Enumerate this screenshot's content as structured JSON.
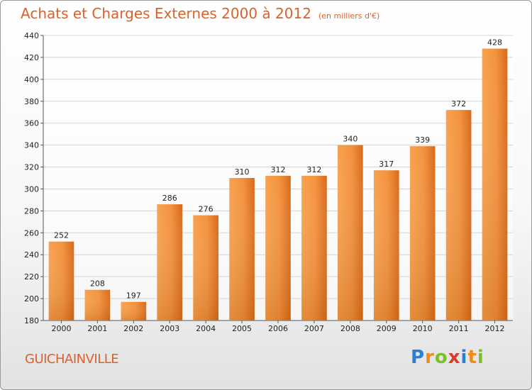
{
  "chart_data": {
    "type": "bar",
    "title": "Achats et Charges Externes 2000 à 2012",
    "subtitle": "(en milliers d'€)",
    "categories": [
      "2000",
      "2001",
      "2002",
      "2003",
      "2004",
      "2005",
      "2006",
      "2007",
      "2008",
      "2009",
      "2010",
      "2011",
      "2012"
    ],
    "values": [
      252,
      208,
      197,
      286,
      276,
      310,
      312,
      312,
      340,
      317,
      339,
      372,
      428
    ],
    "ylim": [
      180,
      440
    ],
    "yticks": [
      180,
      200,
      220,
      240,
      260,
      280,
      300,
      320,
      340,
      360,
      380,
      400,
      420,
      440
    ],
    "grid": true,
    "bar_color": "#f3923d",
    "xlabel": "",
    "ylabel": ""
  },
  "footer": {
    "city": "GUICHAINVILLE",
    "logo_letters": [
      "P",
      "r",
      "o",
      "x",
      "i",
      "t",
      "i"
    ],
    "logo_colors": [
      "#2f7fd1",
      "#f08a1d",
      "#7bbf2a",
      "#d93b2b",
      "#2f7fd1",
      "#f08a1d",
      "#7bbf2a"
    ]
  }
}
